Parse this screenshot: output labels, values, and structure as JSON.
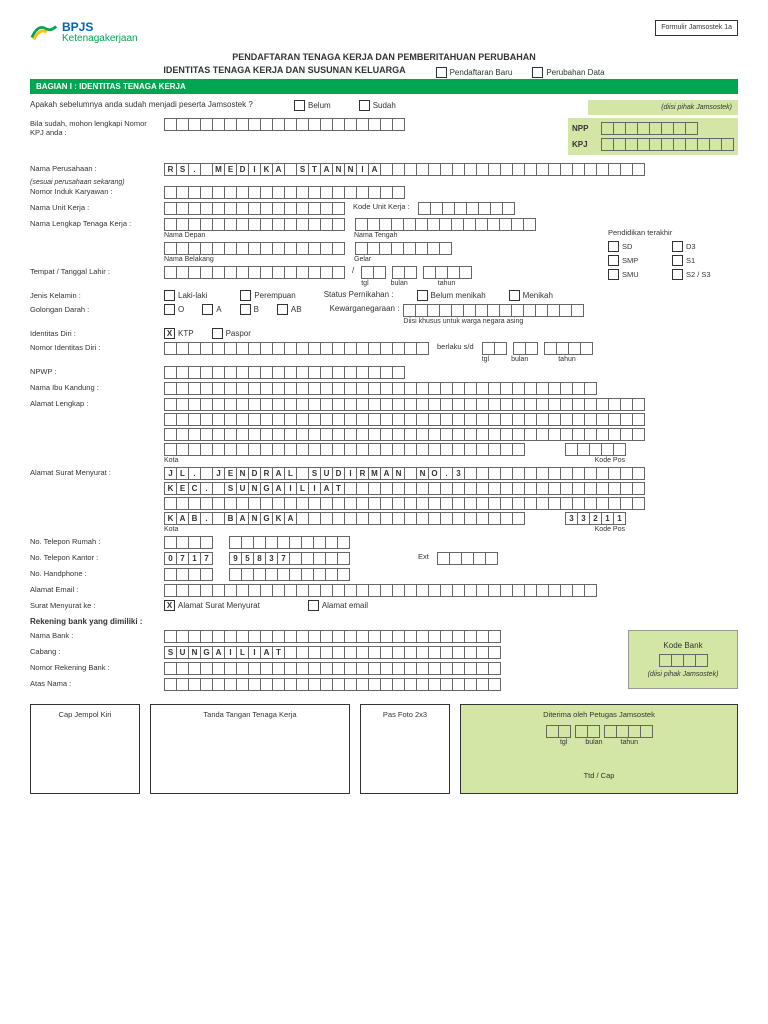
{
  "header": {
    "brand": "BPJS",
    "brandSub": "Ketenagakerjaan",
    "formBox": "Formulir Jamsostek 1a"
  },
  "title1": "PENDAFTARAN TENAGA KERJA DAN PEMBERITAHUAN PERUBAHAN",
  "title2": "IDENTITAS TENAGA KERJA DAN SUSUNAN KELUARGA",
  "topCb1": "Pendaftaran Baru",
  "topCb2": "Perubahan Data",
  "section1": "BAGIAN I : IDENTITAS TENAGA KERJA",
  "q1": "Apakah sebelumnya anda sudah menjadi peserta Jamsostek ?",
  "belum": "Belum",
  "sudah": "Sudah",
  "diisi": "(diisi pihak Jamsostek)",
  "bila": "Bila sudah, mohon lengkapi Nomor KPJ anda :",
  "npp": "NPP",
  "kpj": "KPJ",
  "namaPerusahaan": "Nama Perusahaan :",
  "namaPerusahaanVal": "RS. MEDIKA STANNIA",
  "sesuai": "(sesuai perusahaan sekarang)",
  "nomorInduk": "Nomor Induk Karyawan :",
  "namaUnit": "Nama Unit Kerja :",
  "kodeUnit": "Kode Unit Kerja :",
  "namaLengkap": "Nama Lengkap Tenaga Kerja :",
  "namaDepan": "Nama Depan",
  "namaTengah": "Nama Tengah",
  "namaBelakang": "Nama Belakang",
  "gelar": "Gelar",
  "pendidikan": "Pendidikan terakhir",
  "sd": "SD",
  "d3": "D3",
  "smp": "SMP",
  "s1": "S1",
  "smu": "SMU",
  "s2": "S2 / S3",
  "tempat": "Tempat / Tanggal Lahir :",
  "tgl": "tgl",
  "bulan": "bulan",
  "tahun": "tahun",
  "jenisKelamin": "Jenis Kelamin :",
  "laki": "Laki-laki",
  "perempuan": "Perempuan",
  "statusNikah": "Status Pernikahan :",
  "belumNikah": "Belum menikah",
  "menikah": "Menikah",
  "golDarah": "Golongan Darah :",
  "o": "O",
  "a": "A",
  "b": "B",
  "ab": "AB",
  "kewarganegaraan": "Kewarganegaraan :",
  "diisiKhusus": "Diisi khusus untuk warga negara asing",
  "identitas": "Identitas Diri :",
  "ktp": "KTP",
  "paspor": "Paspor",
  "nomorIdentitas": "Nomor Identitas Diri :",
  "berlaku": "berlaku s/d",
  "npwp": "NPWP :",
  "namaIbu": "Nama Ibu Kandung :",
  "alamat": "Alamat Lengkap :",
  "kota": "Kota",
  "kodePos": "Kode Pos",
  "alamatSurat": "Alamat Surat Menyurat :",
  "alamatSuratVal1": "JL. JENDRAL SUDIRMAN NO.3",
  "alamatSuratVal2": "KEC. SUNGAILIAT",
  "alamatSuratVal4": "KAB. BANGKA",
  "kodePosVal": "33211",
  "telRumah": "No. Telepon Rumah :",
  "telKantor": "No. Telepon Kantor :",
  "telKantorVal": "0717  95837",
  "ext": "Ext",
  "hp": "No. Handphone :",
  "email": "Alamat Email :",
  "suratKe": "Surat Menyurat ke :",
  "opsiSurat": "Alamat Surat Menyurat",
  "opsiEmail": "Alamat email",
  "rekening": "Rekening bank yang dimiliki :",
  "namaBank": "Nama Bank :",
  "cabang": "Cabang :",
  "cabangVal": "SUNGAILIAT",
  "nomorRek": "Nomor Rekening Bank :",
  "atasNama": "Atas Nama :",
  "kodeBank": "Kode Bank",
  "sig1": "Cap Jempol Kiri",
  "sig2": "Tanda Tangan Tenaga Kerja",
  "sig3": "Pas Foto 2x3",
  "sig4": "Diterima oleh Petugas Jamsostek",
  "ttd": "Ttd / Cap"
}
